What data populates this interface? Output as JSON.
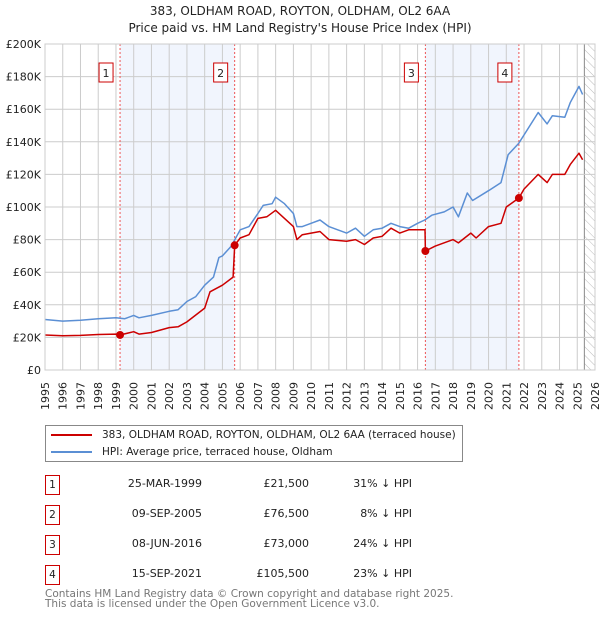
{
  "title_line1": "383, OLDHAM ROAD, ROYTON, OLDHAM, OL2 6AA",
  "title_line2": "Price paid vs. HM Land Registry's House Price Index (HPI)",
  "chart_data": {
    "type": "line",
    "title": "383, OLDHAM ROAD, ROYTON, OLDHAM, OL2 6AA — Price paid vs. HM Land Registry's House Price Index (HPI)",
    "xlim": [
      1995,
      2026
    ],
    "ylim": [
      0,
      200000
    ],
    "x_ticks": [
      1995,
      1996,
      1997,
      1998,
      1999,
      2000,
      2001,
      2002,
      2003,
      2004,
      2005,
      2006,
      2007,
      2008,
      2009,
      2010,
      2011,
      2012,
      2013,
      2014,
      2015,
      2016,
      2017,
      2018,
      2019,
      2020,
      2021,
      2022,
      2023,
      2024,
      2025,
      2026
    ],
    "y_ticks": [
      {
        "v": 0,
        "label": "£0"
      },
      {
        "v": 20000,
        "label": "£20K"
      },
      {
        "v": 40000,
        "label": "£40K"
      },
      {
        "v": 60000,
        "label": "£60K"
      },
      {
        "v": 80000,
        "label": "£80K"
      },
      {
        "v": 100000,
        "label": "£100K"
      },
      {
        "v": 120000,
        "label": "£120K"
      },
      {
        "v": 140000,
        "label": "£140K"
      },
      {
        "v": 160000,
        "label": "£160K"
      },
      {
        "v": 180000,
        "label": "£180K"
      },
      {
        "v": 200000,
        "label": "£200K"
      }
    ],
    "grid": true,
    "forecast_hatch_from": 2025.4,
    "series": [
      {
        "name": "383, OLDHAM ROAD, ROYTON, OLDHAM, OL2 6AA (terraced house)",
        "color": "#cc0000",
        "x": [
          1995,
          1996,
          1997,
          1998,
          1999,
          1999.23,
          2000,
          2000.3,
          2001,
          2002,
          2002.5,
          2003,
          2004,
          2004.3,
          2005,
          2005.6,
          2005.69,
          2006,
          2006.5,
          2007,
          2007.5,
          2008,
          2008.5,
          2009,
          2009.2,
          2009.5,
          2010,
          2010.5,
          2011,
          2012,
          2012.5,
          2013,
          2013.5,
          2014,
          2014.5,
          2015,
          2015.5,
          2016,
          2016.42,
          2016.44,
          2017,
          2018,
          2018.3,
          2019,
          2019.3,
          2020,
          2020.7,
          2021,
          2021.71,
          2022,
          2022.8,
          2023.3,
          2023.6,
          2024.3,
          2024.6,
          2025.1,
          2025.3
        ],
        "y": [
          21500,
          21000,
          21200,
          21800,
          22000,
          21500,
          23500,
          22000,
          23000,
          26000,
          26500,
          29500,
          38000,
          48000,
          52000,
          57000,
          76500,
          81000,
          83000,
          93000,
          94000,
          98000,
          93000,
          88000,
          80000,
          83000,
          84000,
          85000,
          80000,
          79000,
          80000,
          77000,
          81000,
          82000,
          87000,
          84000,
          86000,
          86000,
          86000,
          73000,
          76000,
          80000,
          78000,
          84000,
          81000,
          88000,
          90000,
          100000,
          105500,
          111000,
          120000,
          115000,
          120000,
          120000,
          126000,
          133000,
          129000
        ]
      },
      {
        "name": "HPI: Average price, terraced house, Oldham",
        "color": "#5b8fd4",
        "x": [
          1995,
          1996,
          1997,
          1998,
          1999,
          1999.5,
          2000,
          2000.3,
          2001,
          2002,
          2002.5,
          2003,
          2003.5,
          2004,
          2004.5,
          2004.8,
          2005,
          2005.5,
          2006,
          2006.5,
          2007,
          2007.3,
          2007.8,
          2008,
          2008.5,
          2009,
          2009.2,
          2009.5,
          2010,
          2010.5,
          2011,
          2011.5,
          2012,
          2012.5,
          2013,
          2013.5,
          2014,
          2014.5,
          2015,
          2015.5,
          2016,
          2016.4,
          2016.8,
          2017.5,
          2018,
          2018.3,
          2018.8,
          2019.1,
          2020,
          2020.7,
          2021.1,
          2021.7,
          2022.8,
          2023.3,
          2023.6,
          2024.3,
          2024.6,
          2025.1,
          2025.3
        ],
        "y": [
          31000,
          30000,
          30500,
          31500,
          32000,
          31500,
          33500,
          32000,
          33500,
          36000,
          37000,
          42000,
          45000,
          52000,
          57000,
          69000,
          70000,
          76000,
          86000,
          88000,
          96000,
          101000,
          102000,
          106000,
          102000,
          96000,
          88000,
          88000,
          90000,
          92000,
          88000,
          86000,
          84000,
          87000,
          82000,
          86000,
          87000,
          90000,
          88000,
          87000,
          90000,
          92000,
          95000,
          97000,
          100000,
          94000,
          108600,
          104000,
          110000,
          115000,
          132000,
          139000,
          158000,
          151000,
          156000,
          155000,
          164000,
          174000,
          169000
        ]
      }
    ],
    "sales": [
      {
        "id": "1",
        "x": 1999.23,
        "y": 21500,
        "date": "25-MAR-1999",
        "price": "£21,500",
        "hpi": "31% ↓ HPI"
      },
      {
        "id": "2",
        "x": 2005.69,
        "y": 76500,
        "date": "09-SEP-2005",
        "price": "£76,500",
        "hpi": "8% ↓ HPI"
      },
      {
        "id": "3",
        "x": 2016.44,
        "y": 73000,
        "date": "08-JUN-2016",
        "price": "£73,000",
        "hpi": "24% ↓ HPI"
      },
      {
        "id": "4",
        "x": 2021.71,
        "y": 105500,
        "date": "15-SEP-2021",
        "price": "£105,500",
        "hpi": "23% ↓ HPI"
      }
    ],
    "shaded_ranges": [
      [
        1999.23,
        2005.69
      ],
      [
        2016.44,
        2021.71
      ]
    ],
    "legend": [
      "383, OLDHAM ROAD, ROYTON, OLDHAM, OL2 6AA (terraced house)",
      "HPI: Average price, terraced house, Oldham"
    ],
    "legend_placement": "bottom"
  },
  "footer_line1": "Contains HM Land Registry data © Crown copyright and database right 2025.",
  "footer_line2": "This data is licensed under the Open Government Licence v3.0."
}
